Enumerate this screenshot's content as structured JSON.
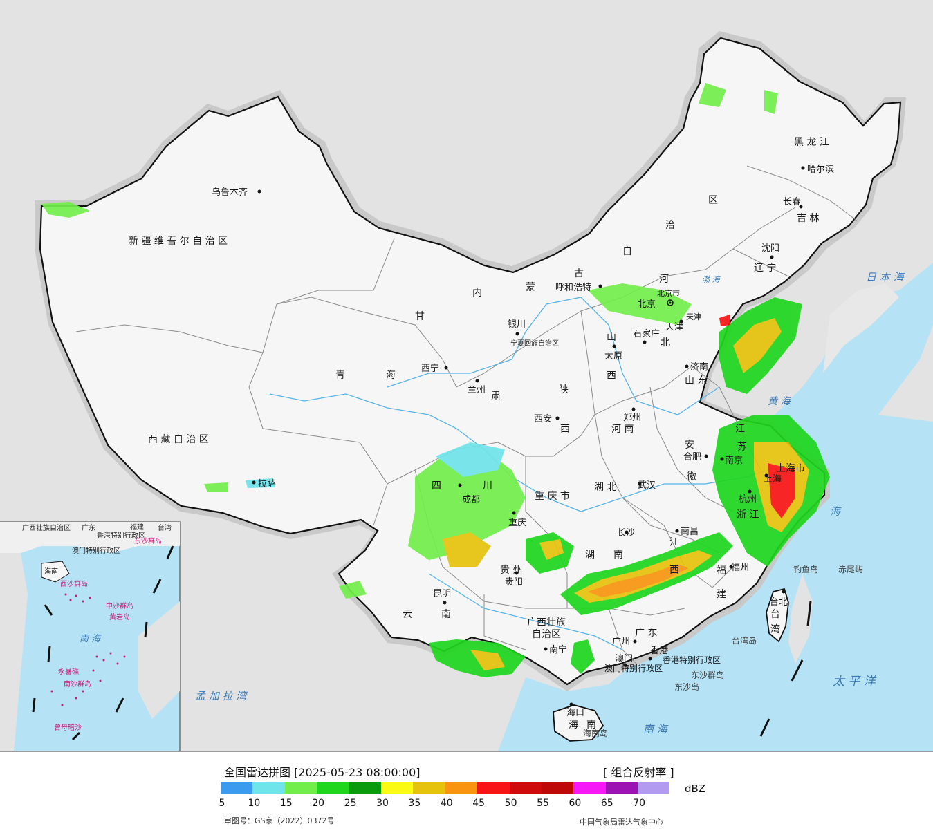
{
  "map": {
    "provinces": [
      {
        "key": "xinjiang",
        "text": "新 疆 维 吾 尔 自 治 区"
      },
      {
        "key": "xizang",
        "text": "西 藏 自 治 区"
      },
      {
        "key": "qinghai1",
        "text": "青"
      },
      {
        "key": "qinghai2",
        "text": "海"
      },
      {
        "key": "gansu",
        "text": "甘"
      },
      {
        "key": "gansu2",
        "text": "肃"
      },
      {
        "key": "neimenggu1",
        "text": "内"
      },
      {
        "key": "neimenggu2",
        "text": "蒙"
      },
      {
        "key": "neimenggu3",
        "text": "古"
      },
      {
        "key": "neimenggu4",
        "text": "自"
      },
      {
        "key": "neimenggu5",
        "text": "治"
      },
      {
        "key": "neimenggu6",
        "text": "区"
      },
      {
        "key": "heilongjiang",
        "text": "黑 龙 江"
      },
      {
        "key": "jilin",
        "text": "吉 林"
      },
      {
        "key": "liaoning",
        "text": "辽 宁"
      },
      {
        "key": "hebei1",
        "text": "河"
      },
      {
        "key": "hebei2",
        "text": "北"
      },
      {
        "key": "shanxi1",
        "text": "山"
      },
      {
        "key": "shanxi2",
        "text": "西"
      },
      {
        "key": "shandong",
        "text": "山 东"
      },
      {
        "key": "shaanxi1",
        "text": "陕"
      },
      {
        "key": "shaanxi2",
        "text": "西"
      },
      {
        "key": "henan",
        "text": "河 南"
      },
      {
        "key": "sichuan1",
        "text": "四"
      },
      {
        "key": "sichuan2",
        "text": "川"
      },
      {
        "key": "chongqing",
        "text": "重 庆 市"
      },
      {
        "key": "hubei",
        "text": "湖 北"
      },
      {
        "key": "anhui1",
        "text": "安"
      },
      {
        "key": "anhui2",
        "text": "徽"
      },
      {
        "key": "jiangsu1",
        "text": "江"
      },
      {
        "key": "jiangsu2",
        "text": "苏"
      },
      {
        "key": "zhejiang",
        "text": "浙 江"
      },
      {
        "key": "jiangxi1",
        "text": "江"
      },
      {
        "key": "jiangxi2",
        "text": "西"
      },
      {
        "key": "hunan1",
        "text": "湖"
      },
      {
        "key": "hunan2",
        "text": "南"
      },
      {
        "key": "guizhou",
        "text": "贵 州"
      },
      {
        "key": "yunnan1",
        "text": "云"
      },
      {
        "key": "yunnan2",
        "text": "南"
      },
      {
        "key": "guangxi1",
        "text": "广西壮族"
      },
      {
        "key": "guangxi2",
        "text": "自治区"
      },
      {
        "key": "guangdong",
        "text": "广 东"
      },
      {
        "key": "fujian1",
        "text": "福"
      },
      {
        "key": "fujian2",
        "text": "建"
      },
      {
        "key": "taiwan1",
        "text": "台"
      },
      {
        "key": "taiwan2",
        "text": "湾"
      },
      {
        "key": "hainan1",
        "text": "海"
      },
      {
        "key": "hainan2",
        "text": "南"
      },
      {
        "key": "shanghai",
        "text": "上海市"
      },
      {
        "key": "ningxia",
        "text": "宁夏回族自治区"
      },
      {
        "key": "beijing_lbl",
        "text": "北京市"
      },
      {
        "key": "tianjin_lbl",
        "text": "天津"
      },
      {
        "key": "hongkong_sar",
        "text": "香港特别行政区"
      },
      {
        "key": "macau_sar",
        "text": "澳门特别行政区"
      }
    ],
    "cities": [
      {
        "key": "urumqi",
        "text": "乌鲁木齐"
      },
      {
        "key": "lhasa",
        "text": "拉萨"
      },
      {
        "key": "xining",
        "text": "西宁"
      },
      {
        "key": "lanzhou",
        "text": "兰州"
      },
      {
        "key": "yinchuan",
        "text": "银川"
      },
      {
        "key": "hohhot",
        "text": "呼和浩特"
      },
      {
        "key": "harbin",
        "text": "哈尔滨"
      },
      {
        "key": "changchun",
        "text": "长春"
      },
      {
        "key": "shenyang",
        "text": "沈阳"
      },
      {
        "key": "beijing",
        "text": "北京"
      },
      {
        "key": "tianjin",
        "text": "天津"
      },
      {
        "key": "shijiazhuang",
        "text": "石家庄"
      },
      {
        "key": "taiyuan",
        "text": "太原"
      },
      {
        "key": "jinan",
        "text": "济南"
      },
      {
        "key": "xian",
        "text": "西安"
      },
      {
        "key": "zhengzhou",
        "text": "郑州"
      },
      {
        "key": "chengdu",
        "text": "成都"
      },
      {
        "key": "chongqing",
        "text": "重庆"
      },
      {
        "key": "wuhan",
        "text": "武汉"
      },
      {
        "key": "hefei",
        "text": "合肥"
      },
      {
        "key": "nanjing",
        "text": "南京"
      },
      {
        "key": "shanghai",
        "text": "上海"
      },
      {
        "key": "hangzhou",
        "text": "杭州"
      },
      {
        "key": "nanchang",
        "text": "南昌"
      },
      {
        "key": "changsha",
        "text": "长沙"
      },
      {
        "key": "guiyang",
        "text": "贵阳"
      },
      {
        "key": "kunming",
        "text": "昆明"
      },
      {
        "key": "nanning",
        "text": "南宁"
      },
      {
        "key": "guangzhou",
        "text": "广州"
      },
      {
        "key": "fuzhou",
        "text": "福州"
      },
      {
        "key": "taibei",
        "text": "台北"
      },
      {
        "key": "haikou",
        "text": "海口"
      },
      {
        "key": "hongkong",
        "text": "香港"
      },
      {
        "key": "macau",
        "text": "澳门"
      }
    ],
    "seas": [
      {
        "key": "japan_sea",
        "text": "日 本 海"
      },
      {
        "key": "pacific",
        "text": "太 平 洋"
      },
      {
        "key": "south_sea",
        "text": "南 海"
      },
      {
        "key": "east_sea",
        "text": "海"
      },
      {
        "key": "bay_bengal",
        "text": "孟 加 拉 湾"
      },
      {
        "key": "bohai",
        "text": "渤 海"
      },
      {
        "key": "huanghai",
        "text": "黄 海"
      },
      {
        "key": "inset_south_sea",
        "text": "南 海"
      }
    ],
    "islands": [
      {
        "key": "diaoyu",
        "text": "钓鱼岛"
      },
      {
        "key": "chiwei",
        "text": "赤尾屿"
      },
      {
        "key": "taiwan_island",
        "text": "台湾岛"
      },
      {
        "key": "dongsha_islands",
        "text": "东沙群岛"
      },
      {
        "key": "dongsha_island",
        "text": "东沙岛"
      },
      {
        "key": "hainan_island",
        "text": "海南岛"
      }
    ],
    "inset_labels": [
      {
        "key": "i_guangxi",
        "text": "广西壮族自治区"
      },
      {
        "key": "i_guangdong",
        "text": "广东"
      },
      {
        "key": "i_fujian",
        "text": "福建"
      },
      {
        "key": "i_taiwan",
        "text": "台湾"
      },
      {
        "key": "i_hk",
        "text": "香港特别行政区"
      },
      {
        "key": "i_macau",
        "text": "澳门特别行政区"
      },
      {
        "key": "i_dongsha",
        "text": "东沙群岛"
      },
      {
        "key": "i_hainan",
        "text": "海南"
      },
      {
        "key": "i_xisha",
        "text": "西沙群岛"
      },
      {
        "key": "i_zhongsha",
        "text": "中沙群岛"
      },
      {
        "key": "i_huangyan",
        "text": "黄岩岛"
      },
      {
        "key": "i_nansha",
        "text": "南沙群岛"
      },
      {
        "key": "i_yongshu",
        "text": "永暑礁"
      },
      {
        "key": "i_zengmu",
        "text": "曾母暗沙"
      }
    ],
    "colors": {
      "ocean": "#b5e3f5",
      "outside_land": "#e2e2e2",
      "china_land": "#f7f7f7",
      "border": "#111111",
      "province_border": "#8a8a8a",
      "river": "#56b4e6"
    }
  },
  "legend": {
    "title": "全国雷达拼图 [2025-05-23 08:00:00]",
    "product": "[ 组合反射率 ]",
    "unit": "dBZ",
    "ticks": [
      "5",
      "10",
      "15",
      "20",
      "25",
      "30",
      "35",
      "40",
      "45",
      "50",
      "55",
      "60",
      "65",
      "70"
    ],
    "colors": [
      "#3b9bee",
      "#6fe4ea",
      "#72ee4b",
      "#1fd61f",
      "#0b9a0b",
      "#fafa12",
      "#e6c20c",
      "#f99410",
      "#f81414",
      "#cf0a0a",
      "#be0808",
      "#f718f7",
      "#9d12b2",
      "#b29af0"
    ],
    "review_no": "审图号：GS京（2022）0372号",
    "source": "中国气象局雷达气象中心"
  }
}
